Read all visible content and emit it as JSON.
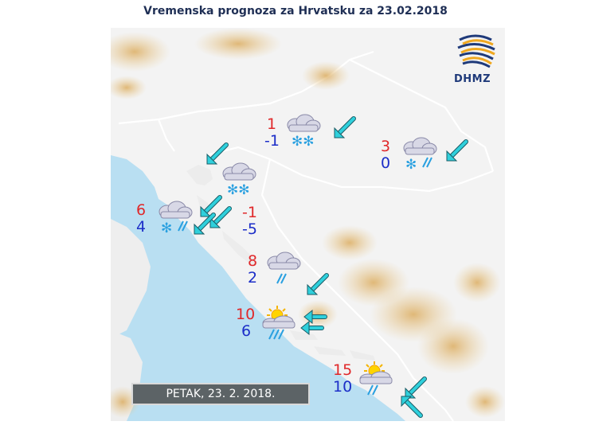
{
  "title": "Vremenska prognoza za Hrvatsku za 23.02.2018",
  "logo": {
    "text": "DHMZ",
    "icon": "dhmz-logo-icon"
  },
  "date_label": "PETAK, 23. 2. 2018.",
  "colors": {
    "sea": "#b9dff2",
    "land": "#f3f3f3",
    "high_temp": "#e0282a",
    "low_temp": "#1c2ec8",
    "arrow": "#2fd0dc"
  },
  "stations": [
    {
      "id": "zagreb",
      "max": "1",
      "min": "-1",
      "weather": "cloudy-snow"
    },
    {
      "id": "osijek",
      "max": "3",
      "min": "0",
      "weather": "cloudy-sleet"
    },
    {
      "id": "gorski-kotar",
      "max": "",
      "min": "",
      "weather": "cloudy-snow"
    },
    {
      "id": "rijeka",
      "max": "6",
      "min": "4",
      "weather": "cloudy-sleet"
    },
    {
      "id": "lika",
      "max": "-1",
      "min": "-5",
      "weather": "none"
    },
    {
      "id": "zadar",
      "max": "8",
      "min": "2",
      "weather": "cloudy-rain"
    },
    {
      "id": "split",
      "max": "10",
      "min": "6",
      "weather": "sun-cloud-heavy-rain"
    },
    {
      "id": "dubrovnik",
      "max": "15",
      "min": "10",
      "weather": "sun-cloud-rain"
    }
  ],
  "wind_icons": [
    "wind-arrow-icon"
  ]
}
